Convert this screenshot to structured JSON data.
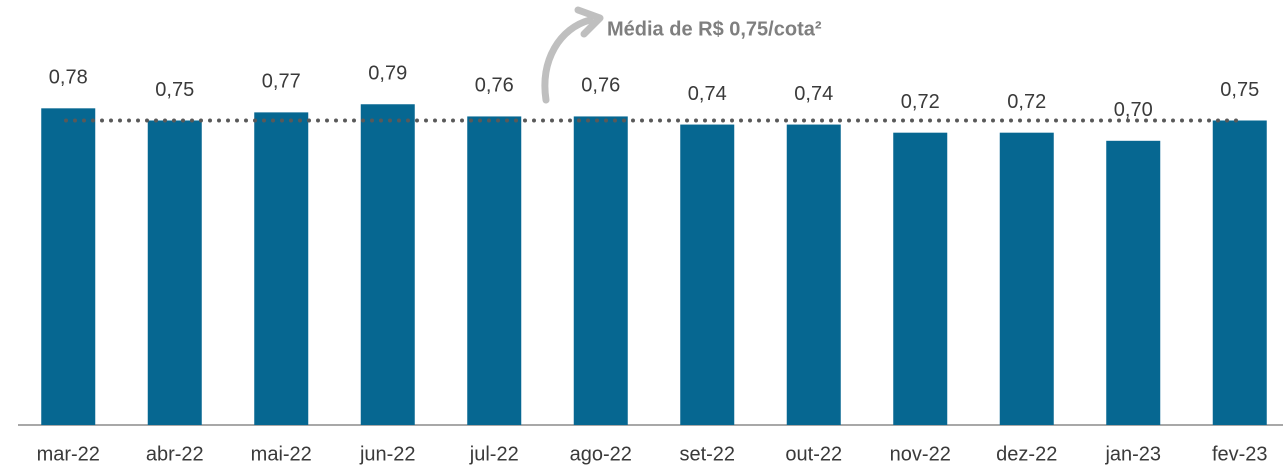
{
  "chart_data": {
    "type": "bar",
    "categories": [
      "mar-22",
      "abr-22",
      "mai-22",
      "jun-22",
      "jul-22",
      "ago-22",
      "set-22",
      "out-22",
      "nov-22",
      "dez-22",
      "jan-23",
      "fev-23"
    ],
    "values": [
      0.78,
      0.75,
      0.77,
      0.79,
      0.76,
      0.76,
      0.74,
      0.74,
      0.72,
      0.72,
      0.7,
      0.75
    ],
    "value_labels": [
      "0,78",
      "0,75",
      "0,77",
      "0,79",
      "0,76",
      "0,76",
      "0,74",
      "0,74",
      "0,72",
      "0,72",
      "0,70",
      "0,75"
    ],
    "color": "#066791",
    "average": 0.75,
    "annotation": "Média de R$ 0,75/cota²",
    "ylim": [
      0,
      1
    ]
  }
}
